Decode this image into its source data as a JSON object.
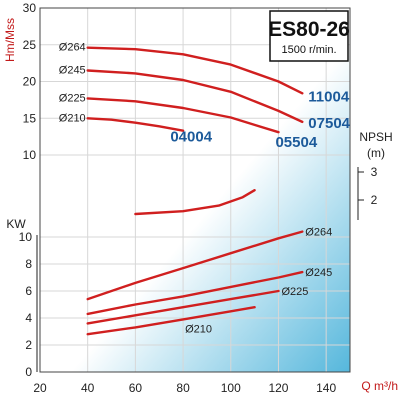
{
  "chart_data": {
    "type": "line",
    "title": "ES80-26",
    "subtitle": "1500 r/min.",
    "xlabel": "Q m³/h",
    "x_ticks": [
      "20",
      "40",
      "60",
      "80",
      "100",
      "120",
      "140"
    ],
    "xlim": [
      20,
      150
    ],
    "head_axis": {
      "label": "Hm/Mss",
      "ticks": [
        "30",
        "25",
        "20",
        "15",
        "10"
      ],
      "ylim": [
        10,
        30
      ]
    },
    "power_axis": {
      "label": "KW",
      "ticks": [
        "10",
        "8",
        "6",
        "4",
        "2",
        "0"
      ],
      "ylim": [
        0,
        10
      ]
    },
    "npsh_axis": {
      "label": "NPSH",
      "unit": "(m)",
      "ticks": [
        "3",
        "2"
      ],
      "ylim": [
        1.5,
        3
      ]
    },
    "head_curves": [
      {
        "label": "Ø264",
        "model": "11004",
        "x": [
          40,
          60,
          80,
          100,
          120,
          130
        ],
        "y": [
          24.6,
          24.4,
          23.7,
          22.3,
          20.0,
          18.4
        ]
      },
      {
        "label": "Ø245",
        "model": "07504",
        "x": [
          40,
          60,
          80,
          100,
          120,
          130
        ],
        "y": [
          21.5,
          21.1,
          20.2,
          18.6,
          16.0,
          14.5
        ]
      },
      {
        "label": "Ø225",
        "model": "05504",
        "x": [
          40,
          60,
          80,
          100,
          110,
          120
        ],
        "y": [
          17.7,
          17.3,
          16.4,
          15.1,
          14.1,
          13.1
        ]
      },
      {
        "label": "Ø210",
        "model": "04004",
        "x": [
          40,
          50,
          60,
          70,
          80
        ],
        "y": [
          15.0,
          14.8,
          14.4,
          13.9,
          13.3
        ]
      }
    ],
    "npsh_curve": {
      "x": [
        60,
        80,
        95,
        105,
        110
      ],
      "y": [
        1.5,
        1.6,
        1.8,
        2.1,
        2.35
      ]
    },
    "power_curves": [
      {
        "label": "Ø264",
        "x": [
          40,
          60,
          80,
          100,
          120,
          130
        ],
        "y": [
          5.4,
          6.6,
          7.7,
          8.8,
          9.9,
          10.4
        ]
      },
      {
        "label": "Ø245",
        "x": [
          40,
          60,
          80,
          100,
          120,
          130
        ],
        "y": [
          4.3,
          5.0,
          5.6,
          6.3,
          7.0,
          7.4
        ]
      },
      {
        "label": "Ø225",
        "x": [
          40,
          60,
          80,
          100,
          120
        ],
        "y": [
          3.6,
          4.2,
          4.8,
          5.4,
          6.0
        ]
      },
      {
        "label": "Ø210",
        "x": [
          40,
          60,
          80,
          100,
          110
        ],
        "y": [
          2.8,
          3.3,
          3.9,
          4.5,
          4.8
        ]
      }
    ],
    "colors": {
      "curve": "#d01f1f",
      "red_text": "#c21a1a",
      "model_text": "#1c5a9a",
      "grid": "#d7d7d7",
      "gradient_light": "#ffffff",
      "gradient_dark": "#55b7dc"
    },
    "grid": true
  }
}
